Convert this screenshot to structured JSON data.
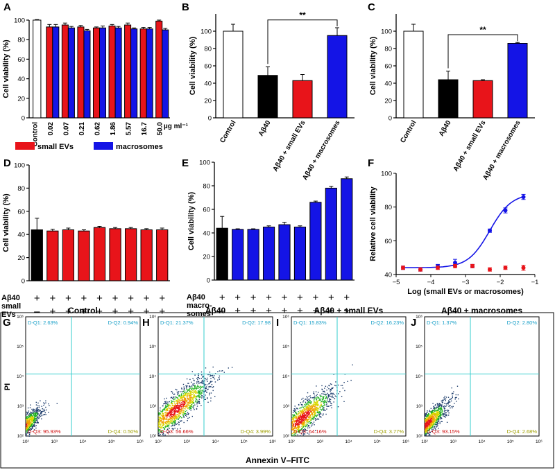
{
  "chart_data": [
    {
      "panel": "A",
      "type": "bar",
      "ylabel": "Cell viability (%)",
      "ylim": [
        0,
        100
      ],
      "yticks": [
        0,
        20,
        40,
        60,
        80,
        100
      ],
      "categories": [
        "Control",
        "0.02",
        "0.07",
        "0.21",
        "0.62",
        "1.86",
        "5.57",
        "16.7",
        "50.0"
      ],
      "unit": "µg ml⁻¹",
      "series": [
        {
          "name": "small EVs",
          "color": "#e8141a",
          "values": [
            100,
            93,
            95,
            93,
            92,
            94,
            95,
            91,
            99
          ],
          "errors": [
            0.5,
            2.5,
            2,
            1.5,
            1,
            1.5,
            2,
            1.5,
            1
          ]
        },
        {
          "name": "macrosomes",
          "color": "#1414e6",
          "values": [
            null,
            93,
            92,
            89,
            92,
            92,
            91,
            91,
            90
          ],
          "errors": [
            null,
            2.5,
            1.5,
            1.5,
            2,
            1.5,
            1,
            1.5,
            1.5
          ]
        }
      ],
      "legend": [
        "small EVs",
        "macrosomes"
      ]
    },
    {
      "panel": "B",
      "type": "bar",
      "ylabel": "Cell viability (%)",
      "ylim": [
        0,
        120
      ],
      "yticks": [
        0,
        20,
        40,
        60,
        80,
        100
      ],
      "categories": [
        "Control",
        "Aβ40",
        "Aβ40 + small EVs",
        "Aβ40 + macrosomes"
      ],
      "values": [
        100,
        49,
        43,
        95
      ],
      "errors": [
        8,
        10,
        7,
        9
      ],
      "colors": [
        "#ffffff",
        "#000000",
        "#e8141a",
        "#1414e6"
      ],
      "significance": {
        "from": 1,
        "to": 3,
        "label": "**"
      }
    },
    {
      "panel": "C",
      "type": "bar",
      "ylabel": "Cell viability (%)",
      "ylim": [
        0,
        120
      ],
      "yticks": [
        0,
        20,
        40,
        60,
        80,
        100
      ],
      "categories": [
        "Control",
        "Aβ40",
        "Aβ40 + small EVs",
        "Aβ40 + macrosomes"
      ],
      "values": [
        100,
        44,
        43,
        86
      ],
      "errors": [
        8,
        10,
        1,
        1
      ],
      "colors": [
        "#ffffff",
        "#000000",
        "#e8141a",
        "#1414e6"
      ],
      "significance": {
        "from": 1,
        "to": 3,
        "label": "**"
      }
    },
    {
      "panel": "D",
      "type": "bar",
      "ylabel": "Cell viability (%)",
      "ylim": [
        0,
        100
      ],
      "yticks": [
        0,
        20,
        40,
        60,
        80,
        100
      ],
      "values": [
        44,
        43,
        44,
        43,
        46,
        45,
        45,
        44,
        44
      ],
      "errors": [
        10,
        1.5,
        1.5,
        1,
        1,
        1,
        1,
        1,
        1.5
      ],
      "colors": [
        "#000000",
        "#e8141a",
        "#e8141a",
        "#e8141a",
        "#e8141a",
        "#e8141a",
        "#e8141a",
        "#e8141a",
        "#e8141a"
      ],
      "rows": [
        {
          "label": "Aβ40",
          "signs": [
            "+",
            "+",
            "+",
            "+",
            "+",
            "+",
            "+",
            "+",
            "+"
          ]
        },
        {
          "label": "small EVs",
          "signs": [
            "–",
            "+",
            "+",
            "+",
            "+",
            "+",
            "+",
            "+",
            "+"
          ]
        }
      ]
    },
    {
      "panel": "E",
      "type": "bar",
      "ylabel": "Cell viability (%)",
      "ylim": [
        0,
        100
      ],
      "yticks": [
        0,
        20,
        40,
        60,
        80,
        100
      ],
      "values": [
        44,
        43,
        43,
        45,
        47,
        45,
        66,
        78,
        86
      ],
      "errors": [
        10,
        0.5,
        0.5,
        1,
        2,
        1,
        1,
        1.5,
        1.5
      ],
      "colors": [
        "#000000",
        "#1414e6",
        "#1414e6",
        "#1414e6",
        "#1414e6",
        "#1414e6",
        "#1414e6",
        "#1414e6",
        "#1414e6"
      ],
      "rows": [
        {
          "label": "Aβ40",
          "signs": [
            "+",
            "+",
            "+",
            "+",
            "+",
            "+",
            "+",
            "+",
            "+"
          ]
        },
        {
          "label": "macro-somes",
          "signs": [
            "–",
            "+",
            "+",
            "+",
            "+",
            "+",
            "+",
            "+",
            "+"
          ]
        }
      ]
    },
    {
      "panel": "F",
      "type": "scatter",
      "xlabel": "Log (small EVs or macrosomes)",
      "ylabel": "Relative cell viability",
      "xlim": [
        -5,
        -1
      ],
      "ylim": [
        40,
        100
      ],
      "xticks": [
        -5,
        -4,
        -3,
        -2,
        -1
      ],
      "yticks": [
        40,
        60,
        80,
        100
      ],
      "series": [
        {
          "name": "macrosomes",
          "color": "#1414e6",
          "x": [
            -4.8,
            -4.3,
            -3.8,
            -3.3,
            -2.8,
            -2.3,
            -1.85,
            -1.33
          ],
          "y": [
            44,
            43,
            45,
            47,
            45,
            66,
            78,
            86
          ],
          "errors": [
            1,
            1,
            1,
            2,
            1,
            1,
            1.5,
            1.5
          ],
          "fit": "sigmoid"
        },
        {
          "name": "small EVs",
          "color": "#e8141a",
          "x": [
            -4.8,
            -4.3,
            -3.8,
            -3.3,
            -2.8,
            -2.3,
            -1.85,
            -1.33
          ],
          "y": [
            44,
            43,
            44,
            45,
            45,
            43,
            44,
            44
          ],
          "errors": [
            1,
            1,
            1,
            1,
            1,
            1,
            1,
            1.5
          ]
        }
      ]
    }
  ],
  "panel_labels": [
    "A",
    "B",
    "C",
    "D",
    "E",
    "F",
    "G",
    "H",
    "I",
    "J"
  ],
  "flow": {
    "ylabel": "PI",
    "xlabel": "Annexin V–FITC",
    "tick_labels": [
      "10²",
      "10³",
      "10⁴",
      "10⁵",
      "10⁶"
    ],
    "plots": [
      {
        "title": "Control",
        "q1": "D-Q1: 2.63%",
        "q2": "D-Q2: 0.94%",
        "q3": "D-Q3: 95.93%",
        "q4": "D-Q4: 0.50%",
        "center": [
          1.85,
          2.25
        ],
        "spread": [
          0.55,
          0.55
        ]
      },
      {
        "title": "Aβ40",
        "q1": "D-Q1: 21.37%",
        "q2": "D-Q2: 17.98",
        "q3": "D-Q3: 56.66%",
        "q4": "D-Q4: 3.99%",
        "center": [
          2.6,
          2.9
        ],
        "spread": [
          1.0,
          0.85
        ]
      },
      {
        "title": "Aβ40 + small EVs",
        "q1": "D-Q1: 15.83%",
        "q2": "D-Q2: 16.23%",
        "q3": "D-Q3: 64.16%",
        "q4": "D-Q4: 3.77%",
        "center": [
          2.35,
          2.6
        ],
        "spread": [
          0.9,
          0.8
        ]
      },
      {
        "title": "Aβ40 + macrosomes",
        "q1": "D-Q1: 1.37%",
        "q2": "D-Q2: 2.80%",
        "q3": "D-Q3: 93.15%",
        "q4": "D-Q4: 2.68%",
        "center": [
          2.05,
          2.4
        ],
        "spread": [
          0.6,
          0.6
        ]
      }
    ]
  }
}
